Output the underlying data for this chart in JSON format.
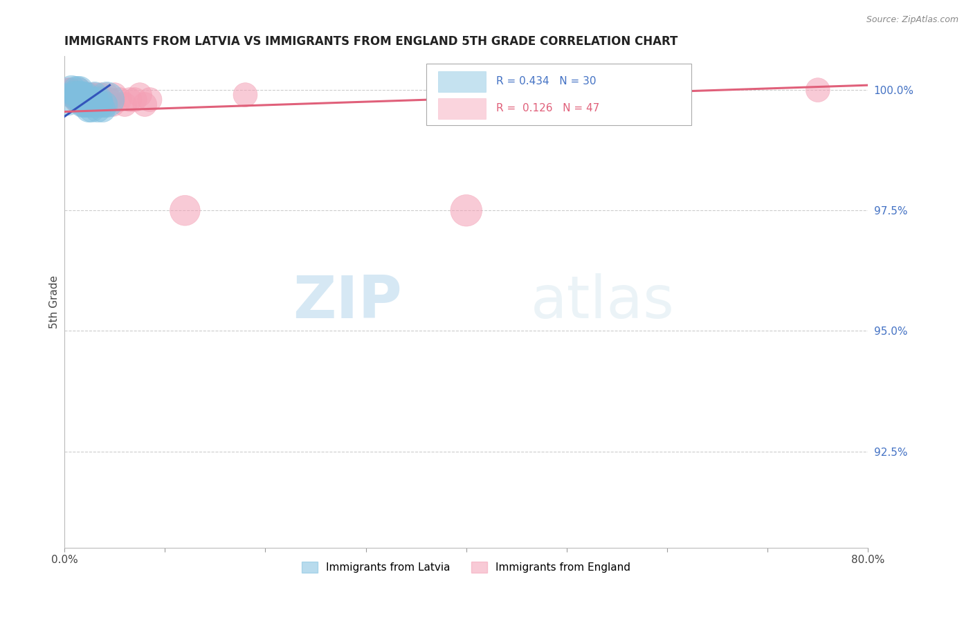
{
  "title": "IMMIGRANTS FROM LATVIA VS IMMIGRANTS FROM ENGLAND 5TH GRADE CORRELATION CHART",
  "source": "Source: ZipAtlas.com",
  "xlabel": "",
  "ylabel": "5th Grade",
  "xlim": [
    0.0,
    0.8
  ],
  "ylim": [
    0.905,
    1.007
  ],
  "xticks": [
    0.0,
    0.1,
    0.2,
    0.3,
    0.4,
    0.5,
    0.6,
    0.7,
    0.8
  ],
  "xticklabels": [
    "0.0%",
    "",
    "",
    "",
    "",
    "",
    "",
    "",
    "80.0%"
  ],
  "yticks_right": [
    1.0,
    0.975,
    0.95,
    0.925
  ],
  "yticklabels_right": [
    "100.0%",
    "97.5%",
    "95.0%",
    "92.5%"
  ],
  "legend_latvia": "Immigrants from Latvia",
  "legend_england": "Immigrants from England",
  "R_latvia": 0.434,
  "N_latvia": 30,
  "R_england": 0.126,
  "N_england": 47,
  "color_latvia": "#7fbfdf",
  "color_england": "#f4a0b5",
  "color_line_latvia": "#3355bb",
  "color_line_england": "#e0607a",
  "watermark_zip": "ZIP",
  "watermark_atlas": "atlas",
  "latvia_x": [
    0.003,
    0.007,
    0.009,
    0.012,
    0.013,
    0.014,
    0.015,
    0.016,
    0.017,
    0.018,
    0.018,
    0.019,
    0.02,
    0.021,
    0.022,
    0.023,
    0.024,
    0.025,
    0.026,
    0.027,
    0.028,
    0.029,
    0.03,
    0.032,
    0.033,
    0.035,
    0.036,
    0.038,
    0.04,
    0.042
  ],
  "latvia_y": [
    0.998,
    1.0,
    0.999,
    1.0,
    0.999,
    0.998,
    1.0,
    0.999,
    0.998,
    0.997,
    0.999,
    0.998,
    0.997,
    0.999,
    0.998,
    0.997,
    0.996,
    0.998,
    0.997,
    0.996,
    0.998,
    0.997,
    0.999,
    0.997,
    0.996,
    0.998,
    0.997,
    0.996,
    0.997,
    0.998
  ],
  "latvia_size": [
    120,
    100,
    90,
    90,
    90,
    90,
    90,
    90,
    90,
    80,
    80,
    80,
    80,
    80,
    80,
    80,
    80,
    80,
    80,
    80,
    80,
    80,
    80,
    80,
    80,
    80,
    80,
    80,
    80,
    150
  ],
  "england_x": [
    0.003,
    0.005,
    0.007,
    0.008,
    0.009,
    0.01,
    0.011,
    0.012,
    0.013,
    0.014,
    0.015,
    0.016,
    0.017,
    0.018,
    0.019,
    0.02,
    0.021,
    0.022,
    0.023,
    0.024,
    0.025,
    0.026,
    0.027,
    0.028,
    0.029,
    0.03,
    0.032,
    0.033,
    0.035,
    0.036,
    0.038,
    0.04,
    0.042,
    0.045,
    0.048,
    0.05,
    0.055,
    0.06,
    0.065,
    0.07,
    0.075,
    0.08,
    0.085,
    0.12,
    0.18,
    0.4,
    0.75
  ],
  "england_y": [
    1.0,
    1.0,
    1.0,
    0.999,
    0.999,
    0.999,
    0.998,
    0.999,
    0.998,
    0.998,
    1.0,
    0.999,
    0.998,
    0.997,
    0.999,
    0.999,
    0.998,
    0.997,
    0.999,
    0.998,
    0.997,
    0.999,
    0.998,
    0.997,
    0.998,
    0.999,
    0.998,
    0.997,
    0.998,
    0.999,
    0.998,
    0.997,
    0.999,
    0.998,
    0.997,
    0.999,
    0.998,
    0.997,
    0.998,
    0.998,
    0.999,
    0.997,
    0.998,
    0.975,
    0.999,
    0.975,
    1.0
  ],
  "england_size": [
    70,
    70,
    70,
    70,
    70,
    70,
    70,
    70,
    70,
    70,
    70,
    70,
    70,
    70,
    70,
    70,
    70,
    70,
    70,
    70,
    70,
    70,
    70,
    70,
    70,
    70,
    70,
    70,
    70,
    70,
    70,
    70,
    70,
    70,
    70,
    70,
    70,
    70,
    70,
    70,
    70,
    70,
    70,
    110,
    70,
    120,
    70
  ],
  "latvia_trend_x": [
    0.0,
    0.045
  ],
  "latvia_trend_y": [
    0.9945,
    1.001
  ],
  "england_trend_x": [
    0.0,
    0.8
  ],
  "england_trend_y": [
    0.9955,
    1.001
  ]
}
